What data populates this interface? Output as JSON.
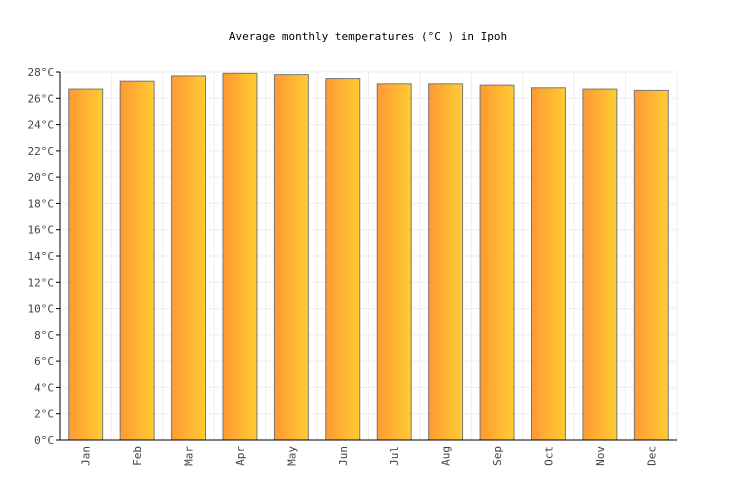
{
  "chart_data": {
    "type": "bar",
    "title": "Average monthly temperatures (°C ) in Ipoh",
    "xlabel": "",
    "ylabel": "",
    "categories": [
      "Jan",
      "Feb",
      "Mar",
      "Apr",
      "May",
      "Jun",
      "Jul",
      "Aug",
      "Sep",
      "Oct",
      "Nov",
      "Dec"
    ],
    "values": [
      26.7,
      27.3,
      27.7,
      27.9,
      27.8,
      27.5,
      27.1,
      27.1,
      27.0,
      26.8,
      26.7,
      26.6
    ],
    "ylim": [
      0,
      28
    ],
    "y_ticks": [
      0,
      2,
      4,
      6,
      8,
      10,
      12,
      14,
      16,
      18,
      20,
      22,
      24,
      26,
      28
    ],
    "y_tick_suffix": "°C",
    "grid": true,
    "colors": {
      "bar_left": "#ff9933",
      "bar_right": "#ffcc33",
      "bar_stroke": "#777777",
      "grid": "#eeeeee",
      "axis": "#000000"
    }
  }
}
